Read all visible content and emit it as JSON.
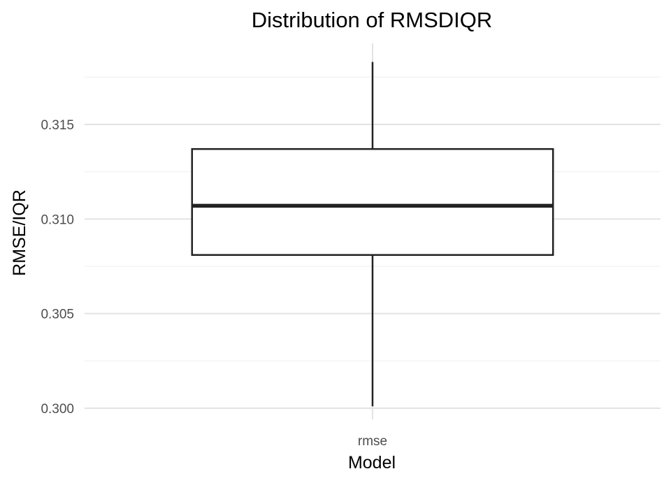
{
  "chart_data": {
    "type": "boxplot",
    "title": "Distribution of RMSDIQR",
    "xlabel": "Model",
    "ylabel": "RMSE/IQR",
    "categories": [
      "rmse"
    ],
    "boxes": [
      {
        "category": "rmse",
        "whisker_low": 0.3001,
        "q1": 0.3081,
        "median": 0.3107,
        "q3": 0.3137,
        "whisker_high": 0.3183
      }
    ],
    "ylim": [
      0.2995,
      0.3188
    ],
    "yticks": [
      0.3,
      0.305,
      0.31,
      0.315
    ],
    "ytick_labels": [
      "0.300",
      "0.305",
      "0.310",
      "0.315"
    ],
    "grid": true,
    "legend": false,
    "box_fill": "#ffffff",
    "box_stroke": "#222222"
  }
}
